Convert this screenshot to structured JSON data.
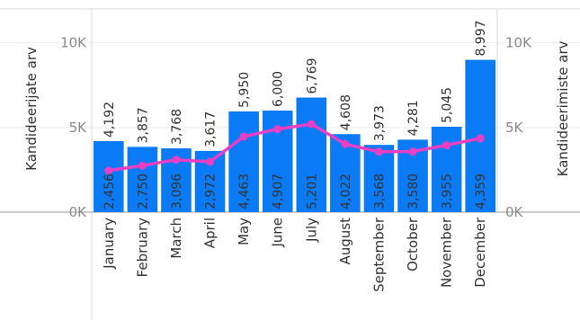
{
  "chart_data": {
    "type": "bar",
    "categories": [
      "January",
      "February",
      "March",
      "April",
      "May",
      "June",
      "July",
      "August",
      "September",
      "October",
      "November",
      "December"
    ],
    "series": [
      {
        "name": "Kandideerijate arv",
        "kind": "bar",
        "color": "#0a7bf5",
        "values": [
          4192,
          3857,
          3768,
          3617,
          5950,
          6000,
          6769,
          4608,
          3973,
          4281,
          5045,
          8997
        ],
        "labels": [
          "4,192",
          "3,857",
          "3,768",
          "3,617",
          "5,950",
          "6,000",
          "6,769",
          "4,608",
          "3,973",
          "4,281",
          "5,045",
          "8,997"
        ]
      },
      {
        "name": "Kandideerimiste arv",
        "kind": "line",
        "color": "#e83fc4",
        "values": [
          2456,
          2750,
          3096,
          2972,
          4463,
          4907,
          5201,
          4022,
          3568,
          3580,
          3955,
          4359
        ],
        "labels": [
          "2,456",
          "2,750",
          "3,096",
          "2,972",
          "4,463",
          "4,907",
          "5,201",
          "4,022",
          "3,568",
          "3,580",
          "3,955",
          "4,359"
        ]
      }
    ],
    "ylabel_left": "Kandideerijate arv",
    "ylabel_right": "Kandideerimiste arv",
    "yticks": [
      "0K",
      "5K",
      "10K"
    ],
    "ytick_values": [
      0,
      5000,
      10000
    ],
    "ylim": [
      0,
      12000
    ],
    "grid": true
  }
}
